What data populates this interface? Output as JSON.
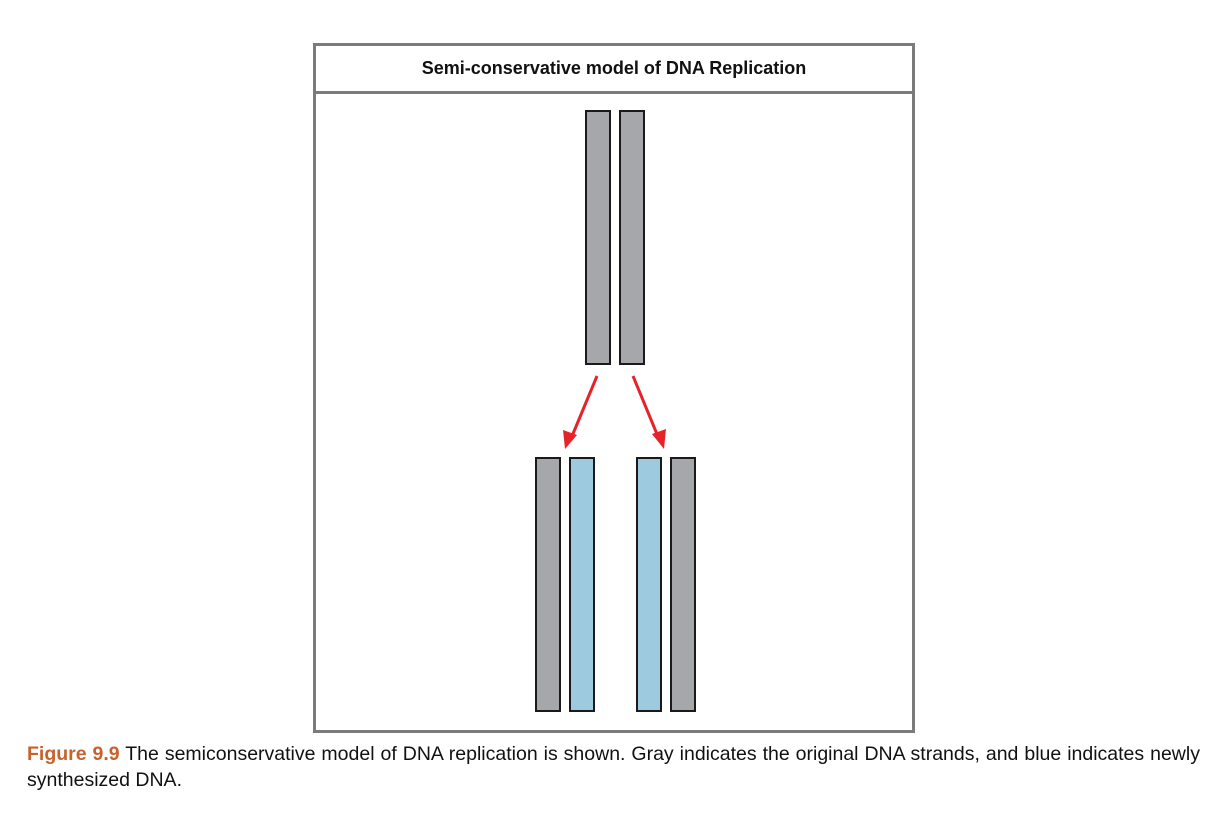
{
  "figure": {
    "title": "Semi-conservative model of DNA Replication",
    "caption_label": "Figure 9.9",
    "caption_text": " The semiconservative model of DNA replication is shown. Gray indicates the original DNA strands, and blue indicates newly synthesized DNA."
  },
  "colors": {
    "original_strand": "#a6a7ab",
    "new_strand": "#9ecadf",
    "arrow": "#e52328",
    "border": "#7b7b7b",
    "caption_label": "#c8622d"
  },
  "strands": {
    "parent": [
      "original",
      "original"
    ],
    "daughter_left": [
      "original",
      "new"
    ],
    "daughter_right": [
      "new",
      "original"
    ]
  }
}
